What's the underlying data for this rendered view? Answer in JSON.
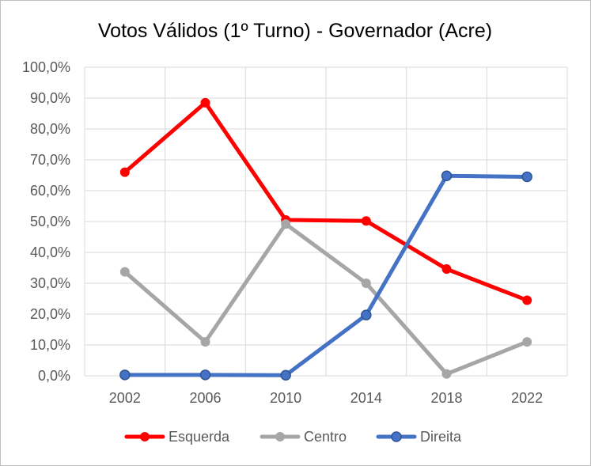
{
  "chart_data": {
    "type": "line",
    "title": "Votos Válidos (1º Turno) - Governador (Acre)",
    "xlabel": "",
    "ylabel": "",
    "categories": [
      "2002",
      "2006",
      "2010",
      "2014",
      "2018",
      "2022"
    ],
    "y_tick_labels": [
      "0,0%",
      "10,0%",
      "20,0%",
      "30,0%",
      "40,0%",
      "50,0%",
      "60,0%",
      "70,0%",
      "80,0%",
      "90,0%",
      "100,0%"
    ],
    "ylim": [
      0,
      100
    ],
    "grid": true,
    "legend_position": "bottom",
    "series": [
      {
        "name": "Esquerda",
        "color": "#ff0000",
        "values": [
          66.0,
          88.5,
          50.5,
          50.2,
          34.6,
          24.5
        ]
      },
      {
        "name": "Centro",
        "color": "#a6a6a6",
        "values": [
          33.7,
          11.0,
          49.2,
          30.0,
          0.6,
          11.0
        ]
      },
      {
        "name": "Direita",
        "color": "#4472c4",
        "values": [
          0.3,
          0.3,
          0.2,
          19.7,
          64.8,
          64.5
        ]
      }
    ]
  }
}
